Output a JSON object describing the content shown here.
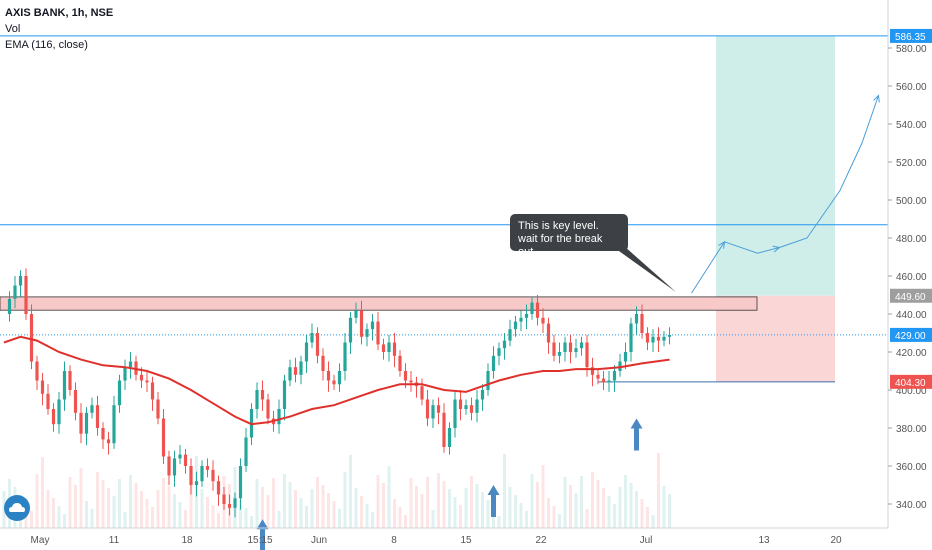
{
  "legend": {
    "title": "AXIS BANK, 1h, NSE",
    "vol": "Vol",
    "ema": "EMA (116, close)"
  },
  "annotation": {
    "line1": "This is key level.",
    "line2": "wait for the break out."
  },
  "colors": {
    "up": "#26a69a",
    "down": "#ef5350",
    "ema": "#e0302c",
    "hline": "#2196f3",
    "target_zone": "#cfeeea",
    "stop_zone": "#fbd6d6",
    "key_zone": "#f8c9c9",
    "arrow": "#4a88c2",
    "axis_text": "#555555"
  },
  "chart_data": {
    "type": "candlestick",
    "title": "AXIS BANK, 1h, NSE",
    "y_axis": {
      "range": [
        325,
        588
      ],
      "ticks": [
        340,
        360,
        380,
        400,
        420,
        440,
        460,
        480,
        500,
        520,
        540,
        560,
        580
      ],
      "tick_labels": [
        "340.00",
        "360.00",
        "380.00",
        "400.00",
        "420.00",
        "440.00",
        "460.00",
        "480.00",
        "500.00",
        "520.00",
        "540.00",
        "560.00",
        "580.00"
      ]
    },
    "x_axis": {
      "tick_labels": [
        "May",
        "11",
        "18",
        "15:15",
        "Jun",
        "8",
        "15",
        "22",
        "Jul",
        "13",
        "20"
      ]
    },
    "price_badges": [
      {
        "label": "586.35",
        "value": 586.35,
        "color": "#2196f3"
      },
      {
        "label": "449.60",
        "value": 449.6,
        "color": "#9e9e9e"
      },
      {
        "label": "429.00",
        "value": 429.0,
        "color": "#2196f3"
      },
      {
        "label": "404.30",
        "value": 404.3,
        "color": "#ef5350"
      }
    ],
    "horizontal_lines": [
      {
        "value": 586.35,
        "style": "solid"
      },
      {
        "value": 487,
        "style": "solid"
      },
      {
        "value": 429.0,
        "style": "dotted"
      },
      {
        "value": 404.3,
        "style": "solid"
      }
    ],
    "key_zone": {
      "low": 442,
      "high": 449
    },
    "position": {
      "entry": 449.6,
      "target": 586.35,
      "stop": 404.3
    },
    "close_path": [
      [
        0,
        440
      ],
      [
        1,
        448
      ],
      [
        2,
        455
      ],
      [
        3,
        460
      ],
      [
        4,
        440
      ],
      [
        5,
        415
      ],
      [
        6,
        405
      ],
      [
        7,
        398
      ],
      [
        8,
        390
      ],
      [
        9,
        382
      ],
      [
        10,
        395
      ],
      [
        11,
        410
      ],
      [
        12,
        400
      ],
      [
        13,
        388
      ],
      [
        14,
        377
      ],
      [
        15,
        388
      ],
      [
        16,
        392
      ],
      [
        17,
        380
      ],
      [
        18,
        374
      ],
      [
        19,
        372
      ],
      [
        20,
        392
      ],
      [
        21,
        405
      ],
      [
        22,
        412
      ],
      [
        23,
        415
      ],
      [
        24,
        408
      ],
      [
        25,
        405
      ],
      [
        26,
        404
      ],
      [
        27,
        395
      ],
      [
        28,
        385
      ],
      [
        29,
        365
      ],
      [
        30,
        355
      ],
      [
        31,
        364
      ],
      [
        32,
        366
      ],
      [
        33,
        360
      ],
      [
        34,
        350
      ],
      [
        35,
        352
      ],
      [
        36,
        360
      ],
      [
        37,
        358
      ],
      [
        38,
        352
      ],
      [
        39,
        345
      ],
      [
        40,
        340
      ],
      [
        41,
        338
      ],
      [
        42,
        343
      ],
      [
        43,
        360
      ],
      [
        44,
        375
      ],
      [
        45,
        390
      ],
      [
        46,
        400
      ],
      [
        47,
        395
      ],
      [
        48,
        385
      ],
      [
        49,
        382
      ],
      [
        50,
        390
      ],
      [
        51,
        405
      ],
      [
        52,
        412
      ],
      [
        53,
        408
      ],
      [
        54,
        415
      ],
      [
        55,
        425
      ],
      [
        56,
        430
      ],
      [
        57,
        418
      ],
      [
        58,
        410
      ],
      [
        59,
        405
      ],
      [
        60,
        403
      ],
      [
        61,
        410
      ],
      [
        62,
        425
      ],
      [
        63,
        438
      ],
      [
        64,
        442
      ],
      [
        65,
        428
      ],
      [
        66,
        432
      ],
      [
        67,
        436
      ],
      [
        68,
        424
      ],
      [
        69,
        420
      ],
      [
        70,
        425
      ],
      [
        71,
        418
      ],
      [
        72,
        410
      ],
      [
        73,
        405
      ],
      [
        74,
        404
      ],
      [
        75,
        402
      ],
      [
        76,
        395
      ],
      [
        77,
        385
      ],
      [
        78,
        392
      ],
      [
        79,
        388
      ],
      [
        80,
        370
      ],
      [
        81,
        380
      ],
      [
        82,
        395
      ],
      [
        83,
        390
      ],
      [
        84,
        392
      ],
      [
        85,
        388
      ],
      [
        86,
        395
      ],
      [
        87,
        400
      ],
      [
        88,
        410
      ],
      [
        89,
        418
      ],
      [
        90,
        422
      ],
      [
        91,
        426
      ],
      [
        92,
        432
      ],
      [
        93,
        436
      ],
      [
        94,
        438
      ],
      [
        95,
        440
      ],
      [
        96,
        446
      ],
      [
        97,
        438
      ],
      [
        98,
        435
      ],
      [
        99,
        425
      ],
      [
        100,
        418
      ],
      [
        101,
        420
      ],
      [
        102,
        425
      ],
      [
        103,
        420
      ],
      [
        104,
        422
      ],
      [
        105,
        425
      ],
      [
        106,
        412
      ],
      [
        107,
        408
      ],
      [
        108,
        406
      ],
      [
        109,
        404
      ],
      [
        110,
        405
      ],
      [
        111,
        410
      ],
      [
        112,
        415
      ],
      [
        113,
        420
      ],
      [
        114,
        435
      ],
      [
        115,
        440
      ],
      [
        116,
        430
      ],
      [
        117,
        425
      ],
      [
        118,
        428
      ],
      [
        119,
        426
      ],
      [
        120,
        428
      ],
      [
        121,
        429
      ]
    ],
    "ema_path": [
      [
        0,
        425
      ],
      [
        3,
        428
      ],
      [
        6,
        426
      ],
      [
        10,
        420
      ],
      [
        14,
        416
      ],
      [
        18,
        413
      ],
      [
        22,
        412
      ],
      [
        26,
        410
      ],
      [
        30,
        406
      ],
      [
        34,
        400
      ],
      [
        38,
        393
      ],
      [
        42,
        386
      ],
      [
        45,
        382
      ],
      [
        48,
        383
      ],
      [
        52,
        386
      ],
      [
        56,
        390
      ],
      [
        60,
        392
      ],
      [
        64,
        396
      ],
      [
        68,
        400
      ],
      [
        72,
        403
      ],
      [
        76,
        403
      ],
      [
        80,
        400
      ],
      [
        84,
        399
      ],
      [
        86,
        401
      ],
      [
        90,
        405
      ],
      [
        94,
        408
      ],
      [
        98,
        410
      ],
      [
        101,
        410
      ],
      [
        104,
        411
      ],
      [
        108,
        411
      ],
      [
        112,
        412
      ],
      [
        116,
        414
      ],
      [
        121,
        416
      ]
    ],
    "forecast_path": [
      [
        125,
        451
      ],
      [
        131,
        478
      ],
      [
        137,
        472
      ],
      [
        141,
        475
      ],
      [
        146,
        480
      ],
      [
        152,
        505
      ],
      [
        156,
        530
      ],
      [
        159,
        555
      ]
    ],
    "markers": [
      {
        "kind": "up-arrow",
        "index": 47,
        "value": 332
      },
      {
        "kind": "up-arrow",
        "index": 89,
        "value": 350
      },
      {
        "kind": "up-arrow",
        "index": 115,
        "value": 385
      }
    ]
  }
}
